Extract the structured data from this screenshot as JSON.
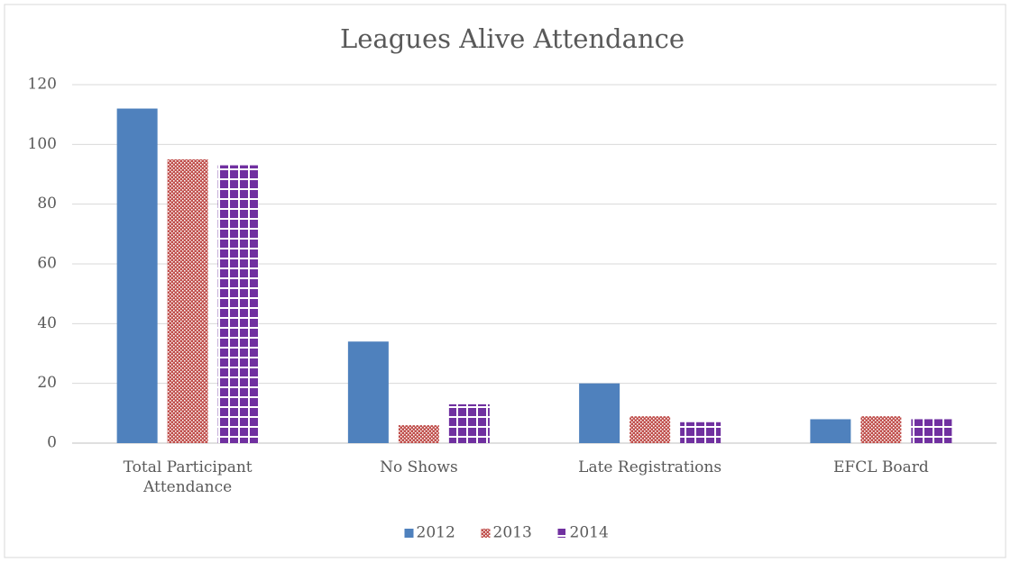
{
  "chart_data": {
    "type": "bar",
    "title": "Leagues Alive Attendance",
    "categories": [
      "Total Participant Attendance",
      "No Shows",
      "Late Registrations",
      "EFCL Board"
    ],
    "series": [
      {
        "name": "2012",
        "color": "#4f81bd",
        "pattern": "solid",
        "values": [
          112,
          34,
          20,
          8
        ]
      },
      {
        "name": "2013",
        "color": "#c0504d",
        "pattern": "dots",
        "values": [
          95,
          6,
          9,
          9
        ]
      },
      {
        "name": "2014",
        "color": "#7030a0",
        "pattern": "grid",
        "values": [
          93,
          13,
          7,
          8
        ]
      }
    ],
    "ylim": [
      0,
      120
    ],
    "yticks": [
      0,
      20,
      40,
      60,
      80,
      100,
      120
    ],
    "grid": true,
    "legend": "bottom"
  }
}
